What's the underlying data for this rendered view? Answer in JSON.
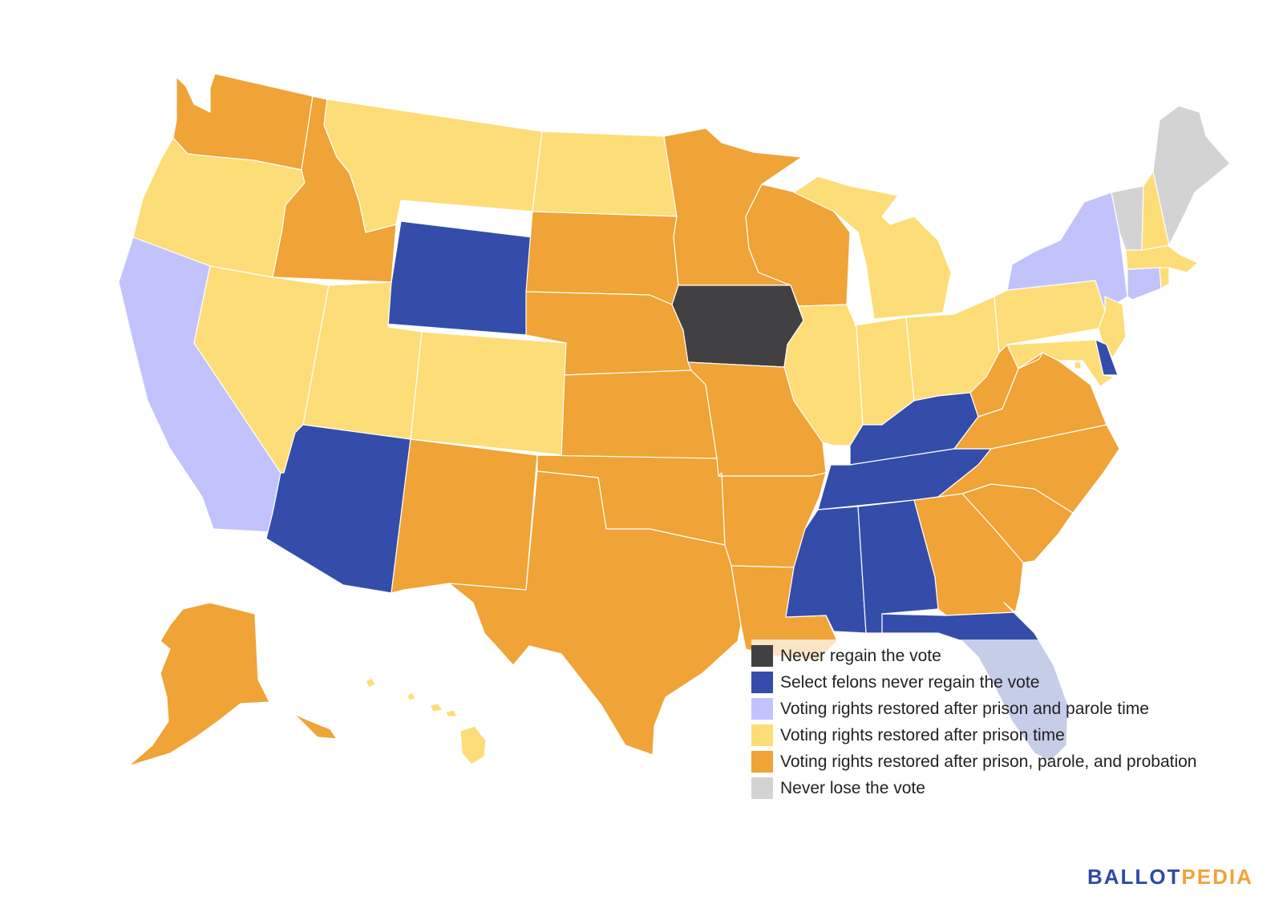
{
  "colors": {
    "never_regain": "#414143",
    "select_felons": "#344dab",
    "prison_parole": "#c2c3fc",
    "prison_only": "#fddd77",
    "prison_parole_probation": "#f0a336",
    "never_lose": "#d3d3d3"
  },
  "legend": [
    {
      "label": "Never regain the vote",
      "category": "never_regain"
    },
    {
      "label": "Select felons never regain the vote",
      "category": "select_felons"
    },
    {
      "label": "Voting rights restored after prison and parole time",
      "category": "prison_parole"
    },
    {
      "label": "Voting rights restored after prison time",
      "category": "prison_only"
    },
    {
      "label": "Voting rights restored after prison, parole, and probation",
      "category": "prison_parole_probation"
    },
    {
      "label": "Never lose the vote",
      "category": "never_lose"
    }
  ],
  "brand": {
    "part1": "BALLOT",
    "part2": "PEDIA"
  },
  "states": {
    "WA": "prison_parole_probation",
    "OR": "prison_only",
    "CA": "prison_parole",
    "ID": "prison_parole_probation",
    "NV": "prison_only",
    "MT": "prison_only",
    "WY": "select_felons",
    "UT": "prison_only",
    "AZ": "select_felons",
    "CO": "prison_only",
    "NM": "prison_parole_probation",
    "ND": "prison_only",
    "SD": "prison_parole_probation",
    "NE": "prison_parole_probation",
    "KS": "prison_parole_probation",
    "OK": "prison_parole_probation",
    "TX": "prison_parole_probation",
    "MN": "prison_parole_probation",
    "IA": "never_regain",
    "MO": "prison_parole_probation",
    "AR": "prison_parole_probation",
    "LA": "prison_parole_probation",
    "WI": "prison_parole_probation",
    "IL": "prison_only",
    "MI": "prison_only",
    "IN": "prison_only",
    "OH": "prison_only",
    "KY": "select_felons",
    "TN": "select_felons",
    "MS": "select_felons",
    "AL": "select_felons",
    "GA": "prison_parole_probation",
    "FL": "select_felons",
    "SC": "prison_parole_probation",
    "NC": "prison_parole_probation",
    "VA": "prison_parole_probation",
    "WV": "prison_parole_probation",
    "PA": "prison_only",
    "NY": "prison_parole",
    "VT": "never_lose",
    "NH": "prison_only",
    "ME": "never_lose",
    "MA": "prison_only",
    "CT": "prison_parole",
    "RI": "prison_only",
    "NJ": "prison_only",
    "DE": "select_felons",
    "MD": "prison_only",
    "DC": "prison_only",
    "AK": "prison_parole_probation",
    "HI": "prison_only"
  }
}
